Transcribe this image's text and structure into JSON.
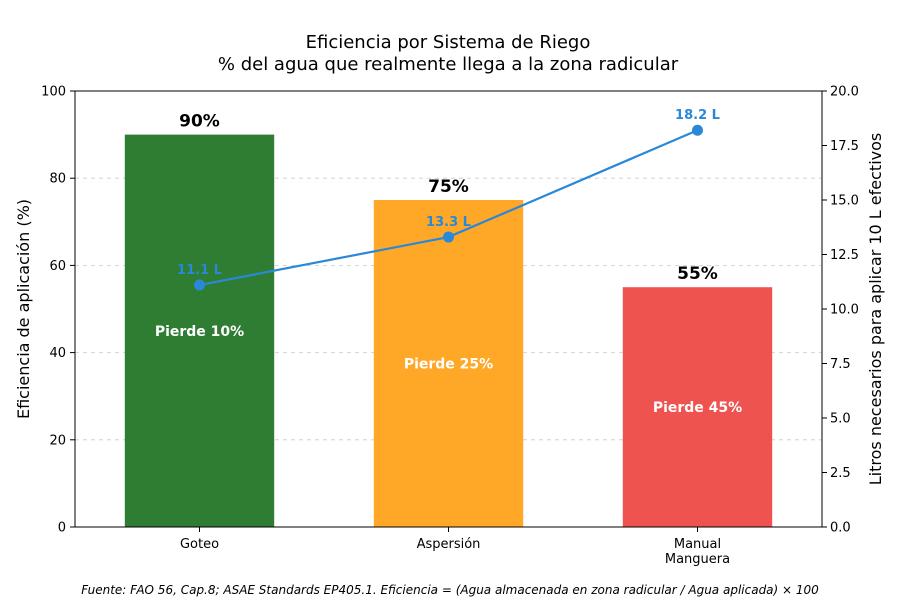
{
  "chart_data": {
    "type": "bar",
    "title": "Eficiencia por Sistema de Riego",
    "subtitle": "% del agua que realmente llega a la zona radicular",
    "categories": [
      [
        "Goteo"
      ],
      [
        "Aspersión"
      ],
      [
        "Manual",
        "Manguera"
      ]
    ],
    "ylabel": "Eficiencia de aplicación (%)",
    "y2label": "Litros necesarios para aplicar 10 L efectivos",
    "ylim": [
      0,
      100
    ],
    "y2lim": [
      0,
      20
    ],
    "yticks": [
      0,
      20,
      40,
      60,
      80,
      100
    ],
    "y2ticks": [
      "0.0",
      "2.5",
      "5.0",
      "7.5",
      "10.0",
      "12.5",
      "15.0",
      "17.5",
      "20.0"
    ],
    "grid": "horizontal dashed",
    "series": [
      {
        "axis": "left",
        "kind": "bar",
        "values": [
          90,
          75,
          55
        ],
        "value_labels": [
          "90%",
          "75%",
          "55%"
        ],
        "inner_labels": [
          "Pierde 10%",
          "Pierde 25%",
          "Pierde 45%"
        ],
        "colors": [
          "#2e7d32",
          "#ffa726",
          "#ef5350"
        ]
      },
      {
        "axis": "right",
        "kind": "line",
        "values": [
          11.1,
          13.3,
          18.2
        ],
        "value_labels": [
          "11.1 L",
          "13.3 L",
          "18.2 L"
        ],
        "color": "#2a88d8"
      }
    ],
    "footnote": "Fuente: FAO 56, Cap.8; ASAE Standards EP405.1. Eficiencia = (Agua almacenada en zona radicular / Agua aplicada) × 100"
  }
}
